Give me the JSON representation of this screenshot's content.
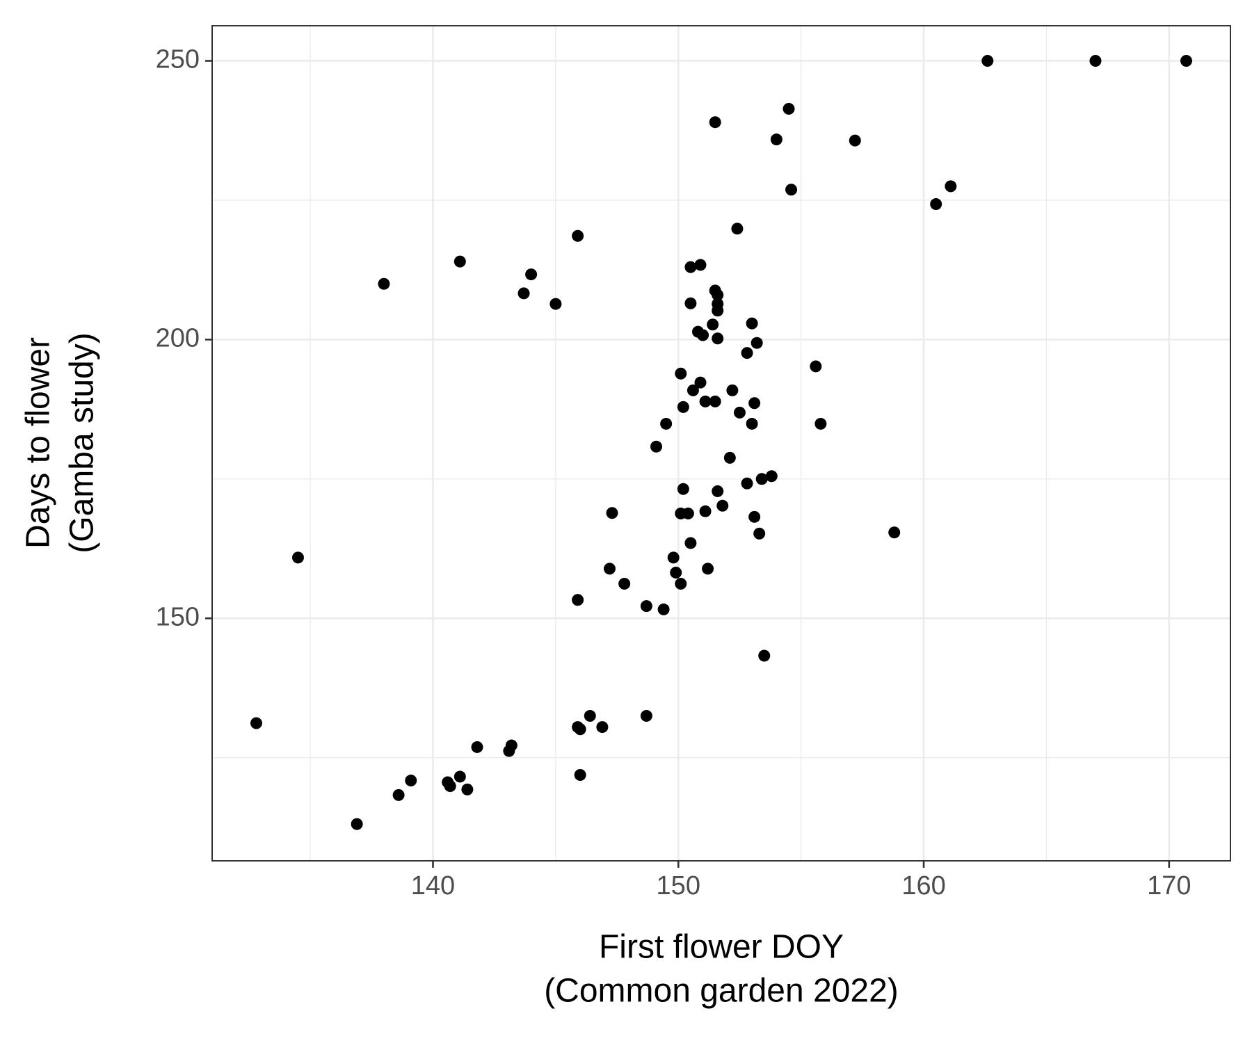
{
  "chart_data": {
    "type": "scatter",
    "xlabel": [
      "First flower DOY",
      "(Common garden 2022)"
    ],
    "ylabel": [
      "Days to flower",
      "(Gamba study)"
    ],
    "xlim": [
      131,
      172.5
    ],
    "ylim": [
      106.5,
      256.3
    ],
    "xticks": [
      140,
      150,
      160,
      170
    ],
    "yticks": [
      150,
      200,
      250
    ],
    "xminor": [
      135,
      145,
      155,
      165
    ],
    "yminor": [
      125,
      175,
      225
    ],
    "grid": true,
    "color": "#000000",
    "x": [
      162.6,
      167.0,
      170.7,
      154.5,
      151.5,
      154.0,
      157.2,
      154.6,
      161.1,
      160.5,
      152.4,
      145.9,
      141.1,
      150.9,
      150.5,
      144.0,
      138.0,
      143.7,
      151.5,
      151.6,
      151.6,
      151.6,
      150.5,
      145.0,
      151.4,
      153.0,
      150.8,
      151.0,
      151.6,
      153.2,
      152.8,
      155.6,
      150.1,
      150.9,
      150.6,
      152.2,
      151.1,
      151.5,
      153.1,
      150.2,
      152.5,
      149.5,
      153.0,
      155.8,
      149.1,
      152.1,
      153.8,
      153.4,
      152.8,
      150.2,
      151.6,
      151.8,
      147.3,
      150.1,
      150.4,
      151.1,
      153.1,
      153.3,
      158.8,
      150.5,
      134.5,
      149.8,
      147.2,
      149.9,
      151.2,
      147.8,
      150.1,
      145.9,
      148.7,
      149.4,
      153.5,
      132.8,
      148.7,
      146.4,
      145.9,
      146.0,
      146.9,
      143.2,
      143.1,
      141.8,
      141.1,
      140.6,
      139.1,
      140.7,
      146.0,
      141.4,
      138.6,
      136.9
    ],
    "values": [
      250,
      250,
      250,
      241.4,
      239.0,
      235.9,
      235.7,
      226.9,
      227.5,
      224.3,
      219.9,
      218.6,
      214.0,
      213.4,
      213.0,
      211.7,
      210.0,
      208.3,
      208.8,
      208.0,
      206.4,
      205.2,
      206.5,
      206.4,
      202.7,
      202.9,
      201.4,
      200.8,
      200.2,
      199.4,
      197.6,
      195.2,
      193.9,
      192.3,
      190.9,
      190.9,
      188.9,
      188.9,
      188.6,
      187.9,
      186.9,
      184.9,
      184.9,
      184.9,
      180.8,
      178.8,
      175.5,
      175.0,
      174.2,
      173.2,
      172.8,
      170.2,
      168.9,
      168.8,
      168.8,
      169.2,
      168.2,
      165.2,
      165.4,
      163.5,
      160.9,
      160.9,
      158.9,
      158.2,
      158.9,
      156.2,
      156.2,
      153.3,
      152.2,
      151.6,
      143.3,
      131.2,
      132.5,
      132.5,
      130.5,
      130.1,
      130.5,
      127.2,
      126.2,
      126.9,
      121.6,
      120.6,
      120.9,
      119.9,
      121.9,
      119.3,
      118.3,
      113.1
    ]
  }
}
